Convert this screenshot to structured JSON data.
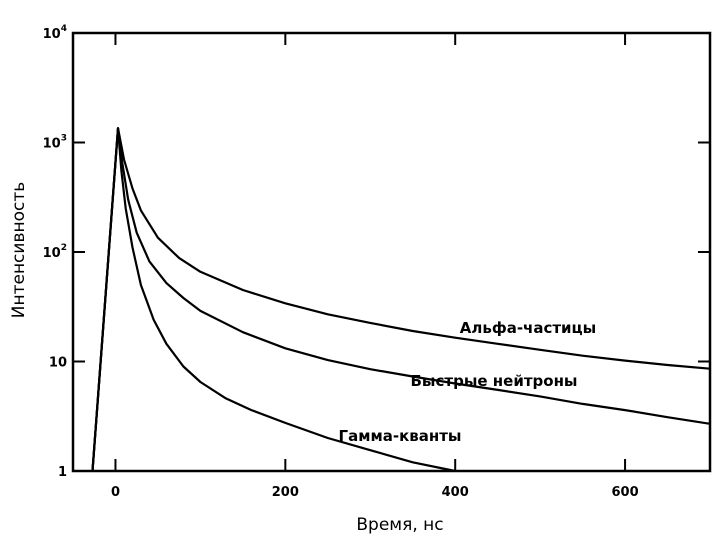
{
  "chart_data": {
    "type": "line",
    "title": "",
    "xlabel": "Время, нс",
    "ylabel": "Интенсивность",
    "x_scale": "linear",
    "y_scale": "log",
    "xlim": [
      -50,
      700
    ],
    "ylim": [
      1,
      10000
    ],
    "grid": false,
    "x_ticks": [
      {
        "value": 0,
        "label": "0"
      },
      {
        "value": 200,
        "label": "200"
      },
      {
        "value": 400,
        "label": "400"
      },
      {
        "value": 600,
        "label": "600"
      }
    ],
    "y_ticks": [
      {
        "value": 1,
        "base": "1",
        "exp": ""
      },
      {
        "value": 10,
        "base": "10",
        "exp": ""
      },
      {
        "value": 100,
        "base": "10",
        "exp": "2"
      },
      {
        "value": 1000,
        "base": "10",
        "exp": "3"
      },
      {
        "value": 10000,
        "base": "10",
        "exp": "4"
      }
    ],
    "series": [
      {
        "name": "Альфа-частицы",
        "points": [
          [
            -27,
            1
          ],
          [
            3,
            1350
          ],
          [
            10,
            700
          ],
          [
            20,
            380
          ],
          [
            30,
            240
          ],
          [
            50,
            135
          ],
          [
            75,
            88
          ],
          [
            100,
            66
          ],
          [
            150,
            45
          ],
          [
            200,
            34
          ],
          [
            250,
            27
          ],
          [
            300,
            22.5
          ],
          [
            350,
            19
          ],
          [
            400,
            16.5
          ],
          [
            450,
            14.5
          ],
          [
            500,
            12.8
          ],
          [
            550,
            11.3
          ],
          [
            600,
            10.2
          ],
          [
            650,
            9.3
          ],
          [
            700,
            8.6
          ]
        ]
      },
      {
        "name": "Быстрые нейтроны",
        "points": [
          [
            -27,
            1
          ],
          [
            3,
            1350
          ],
          [
            8,
            650
          ],
          [
            15,
            300
          ],
          [
            25,
            150
          ],
          [
            40,
            82
          ],
          [
            60,
            52
          ],
          [
            80,
            38
          ],
          [
            100,
            29
          ],
          [
            150,
            18.5
          ],
          [
            200,
            13.2
          ],
          [
            250,
            10.3
          ],
          [
            300,
            8.5
          ],
          [
            350,
            7.3
          ],
          [
            400,
            6.3
          ],
          [
            450,
            5.5
          ],
          [
            500,
            4.8
          ],
          [
            550,
            4.1
          ],
          [
            600,
            3.6
          ],
          [
            650,
            3.1
          ],
          [
            700,
            2.7
          ]
        ]
      },
      {
        "name": "Гамма-кванты",
        "points": [
          [
            -27,
            1
          ],
          [
            3,
            1350
          ],
          [
            7,
            550
          ],
          [
            12,
            250
          ],
          [
            20,
            110
          ],
          [
            30,
            50
          ],
          [
            45,
            24
          ],
          [
            60,
            14.5
          ],
          [
            80,
            9
          ],
          [
            100,
            6.5
          ],
          [
            130,
            4.6
          ],
          [
            160,
            3.6
          ],
          [
            200,
            2.75
          ],
          [
            250,
            2
          ],
          [
            300,
            1.55
          ],
          [
            350,
            1.2
          ],
          [
            400,
            1.0
          ]
        ]
      }
    ]
  }
}
